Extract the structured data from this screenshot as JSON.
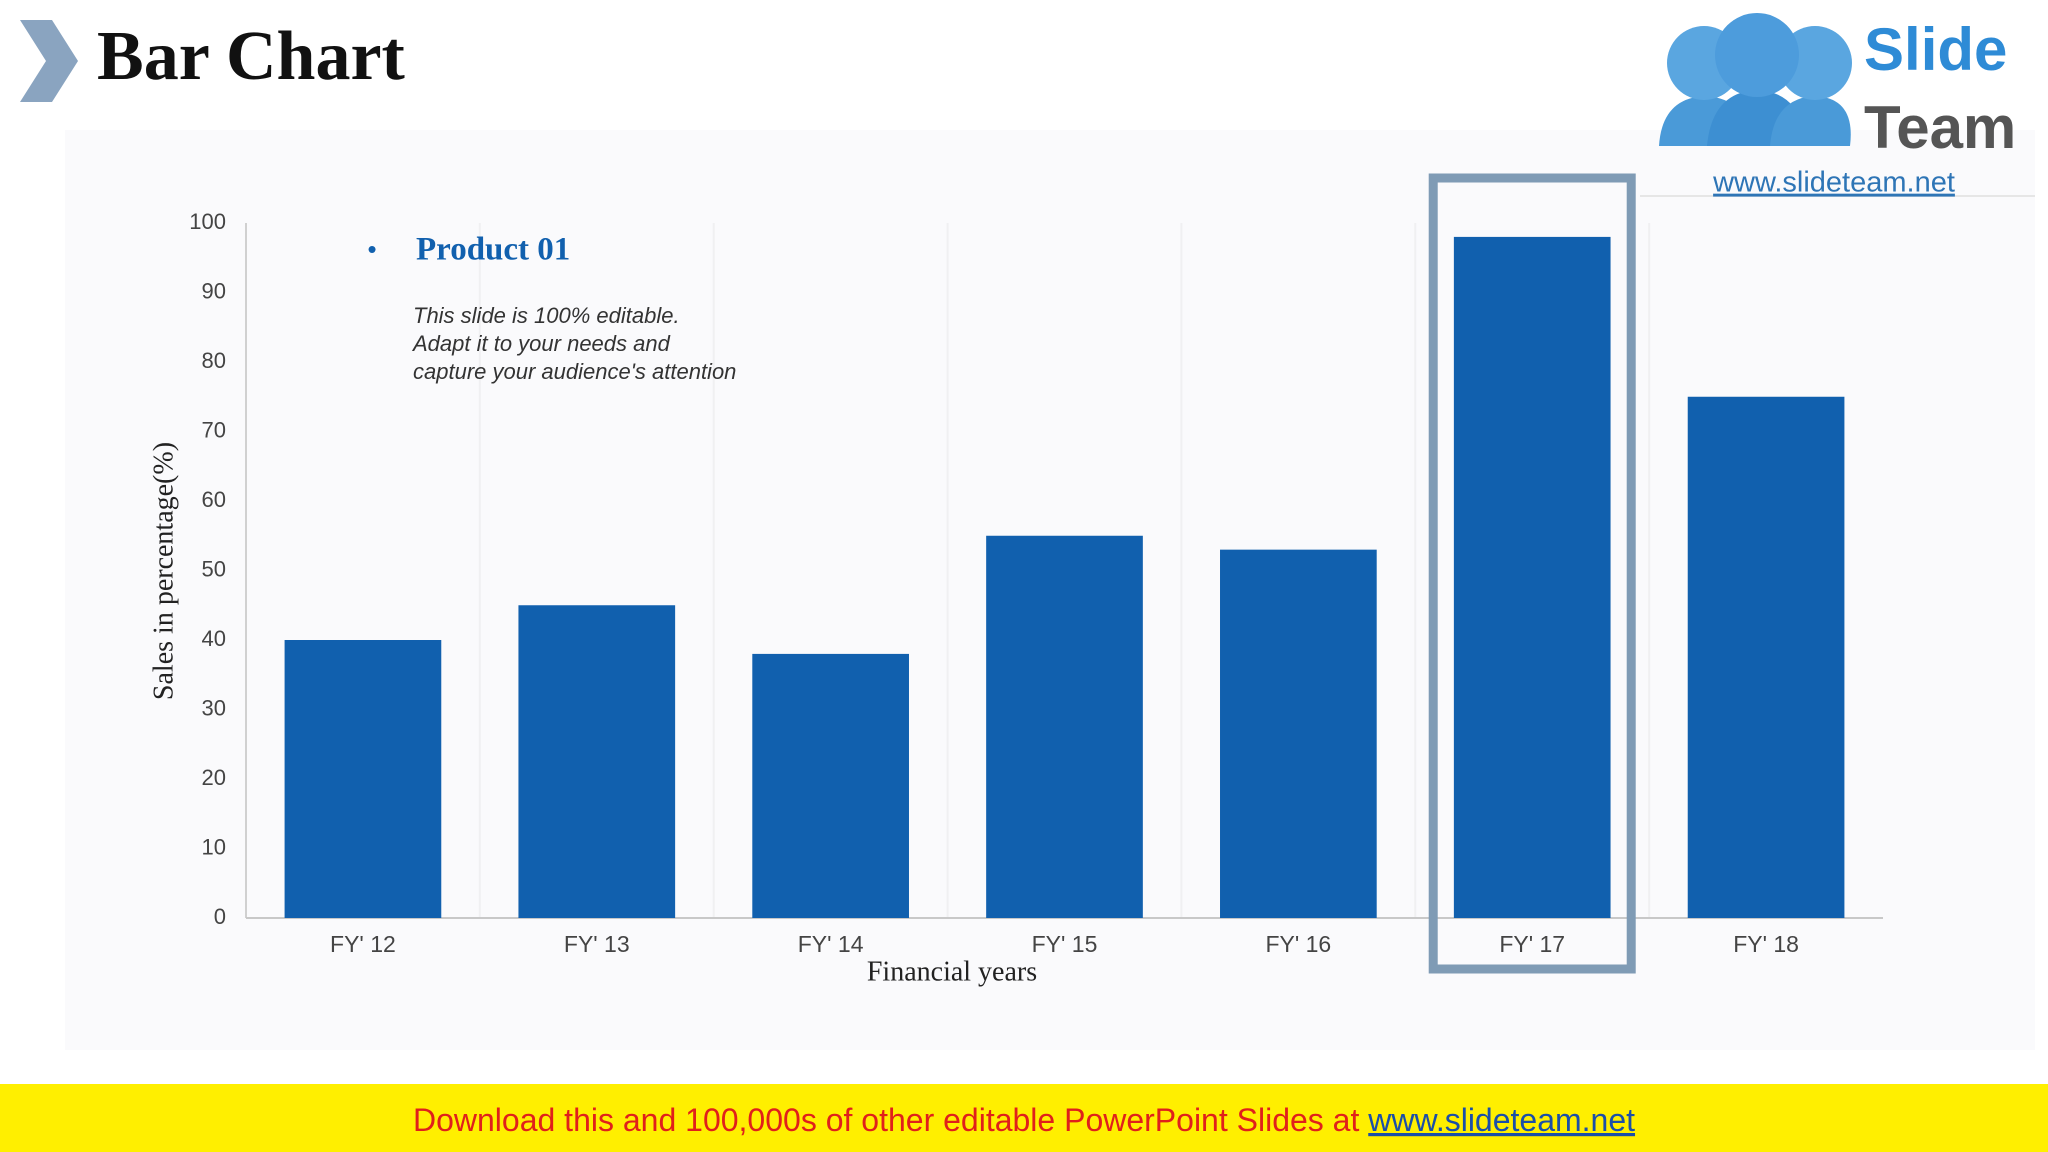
{
  "chart_data": {
    "type": "bar",
    "title": "Bar Chart",
    "categories": [
      "FY' 12",
      "FY' 13",
      "FY' 14",
      "FY' 15",
      "FY' 16",
      "FY' 17",
      "FY' 18"
    ],
    "series": [
      {
        "name": "Product 01",
        "color": "#1160ae",
        "values": [
          40,
          45,
          38,
          55,
          53,
          98,
          75
        ]
      }
    ],
    "ylim": [
      0,
      100
    ],
    "yticks": [
      0,
      10,
      20,
      30,
      40,
      50,
      60,
      70,
      80,
      90,
      100
    ],
    "grid": false,
    "x_label": "Financial years",
    "y_label": "Sales in percentage(%)",
    "annotation": [
      "This slide is 100% editable.",
      "Adapt it to your needs and",
      "capture your audience's attention"
    ],
    "highlight_index": 5,
    "highlight_color": "#7f9bb5"
  },
  "logo": {
    "word1": "Slide",
    "word2": "Team",
    "url": "www.slideteam.net"
  },
  "banner": {
    "text": "Download this and 100,000s of other editable PowerPoint Slides at ",
    "link": "www.slideteam.net"
  }
}
